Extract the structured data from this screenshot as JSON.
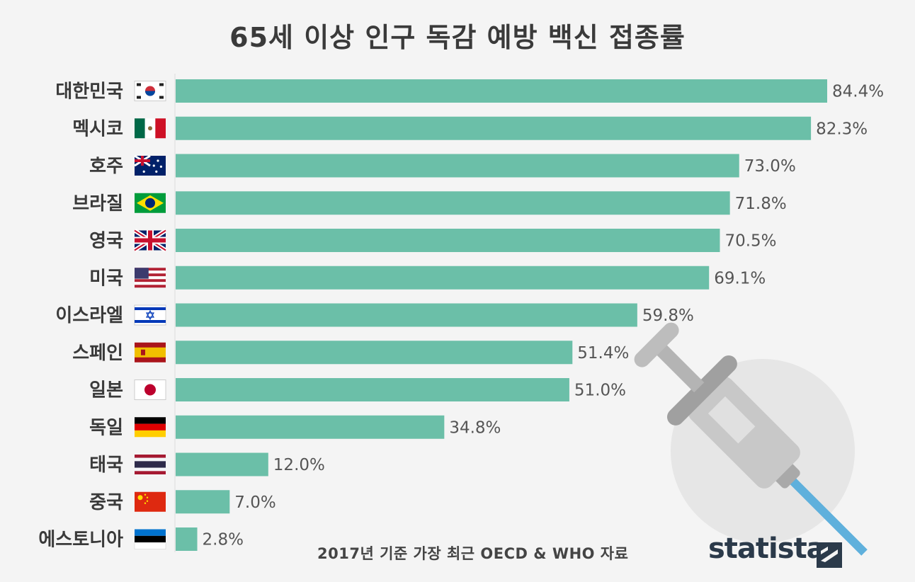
{
  "chart_data": {
    "type": "bar",
    "orientation": "horizontal",
    "title": "65세 이상 인구 독감 예방 백신 접종률",
    "categories": [
      "대한민국",
      "멕시코",
      "호주",
      "브라질",
      "영국",
      "미국",
      "이스라엘",
      "스페인",
      "일본",
      "독일",
      "태국",
      "중국",
      "에스토니아"
    ],
    "values": [
      84.4,
      82.3,
      73.0,
      71.8,
      70.5,
      69.1,
      59.8,
      51.4,
      51.0,
      34.8,
      12.0,
      7.0,
      2.8
    ],
    "value_labels": [
      "84.4%",
      "82.3%",
      "73.0%",
      "71.8%",
      "70.5%",
      "69.1%",
      "59.8%",
      "51.4%",
      "51.0%",
      "34.8%",
      "12.0%",
      "7.0%",
      "2.8%"
    ],
    "flag_icons": [
      "flag-south-korea-icon",
      "flag-mexico-icon",
      "flag-australia-icon",
      "flag-brazil-icon",
      "flag-united-kingdom-icon",
      "flag-united-states-icon",
      "flag-israel-icon",
      "flag-spain-icon",
      "flag-japan-icon",
      "flag-germany-icon",
      "flag-thailand-icon",
      "flag-china-icon",
      "flag-estonia-icon"
    ],
    "xlim": [
      0,
      84.4
    ],
    "xlabel": "",
    "ylabel": "",
    "grid": false,
    "bar_color": "#6bbfa8"
  },
  "footer": {
    "source": "2017년 기준 가장 최근 OECD & WHO 자료",
    "brand": "statista"
  },
  "decoration": {
    "illustration": "syringe-icon",
    "brand_logo": "statista-logo-icon"
  },
  "colors": {
    "background": "#f4f4f4",
    "bar": "#6bbfa8",
    "text": "#333333",
    "brand": "#2b3a4a"
  }
}
